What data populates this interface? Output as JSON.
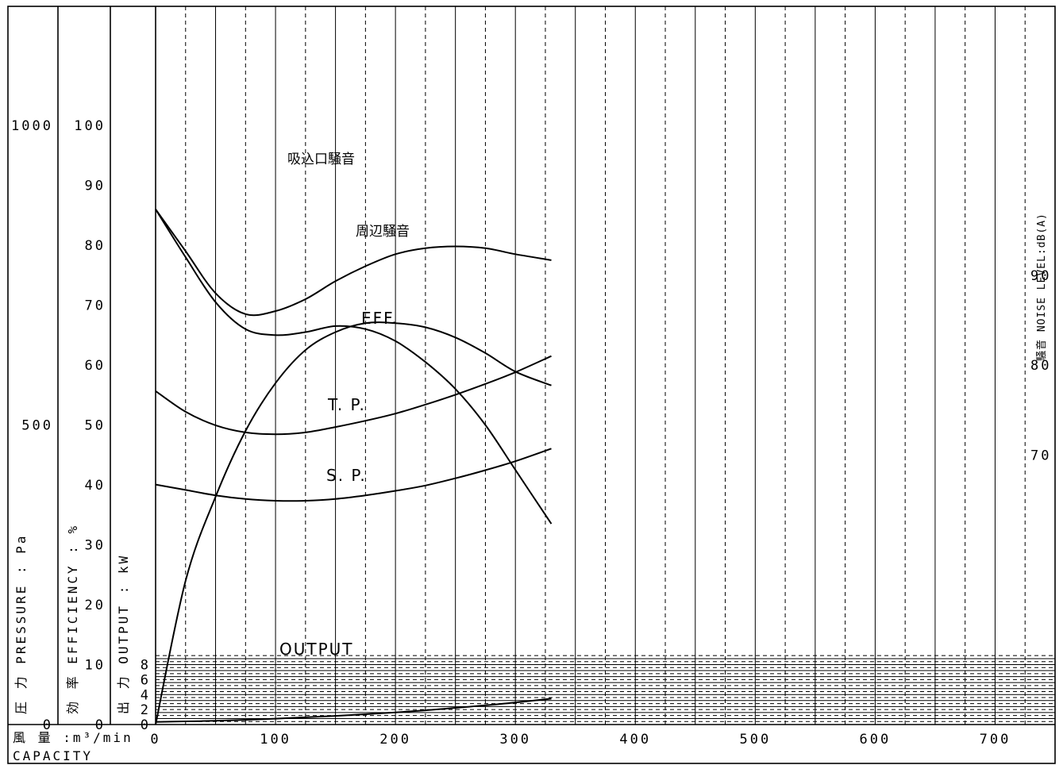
{
  "chart_data": {
    "type": "line",
    "x": {
      "label": "風 量 :m³/min",
      "label_en": "CAPACITY",
      "range": [
        0,
        750
      ],
      "ticks": [
        0,
        100,
        200,
        300,
        400,
        500,
        600,
        700
      ]
    },
    "axes": {
      "pressure": {
        "label": "圧 力 PRESSURE : Pa",
        "range": [
          0,
          1500
        ],
        "ticks": [
          0,
          500,
          1000
        ]
      },
      "efficiency": {
        "label": "効 率 EFFICIENCY : %",
        "range": [
          0,
          100
        ],
        "ticks": [
          0,
          10,
          20,
          30,
          40,
          50,
          60,
          70,
          80,
          90,
          100
        ]
      },
      "output": {
        "label": "出 力 OUTPUT : kW",
        "range": [
          0,
          8
        ],
        "ticks": [
          0,
          2,
          4,
          6,
          8
        ]
      },
      "noise": {
        "label": "騒音 NOISE LEVEL:dB(A)",
        "range": [
          40,
          90
        ],
        "ticks": [
          70,
          80,
          90
        ]
      }
    },
    "series": [
      {
        "name": "吸込口騒音",
        "axis": "noise",
        "x": [
          0,
          25,
          50,
          75,
          100,
          125,
          150,
          175,
          200,
          225,
          250,
          275,
          300,
          330
        ],
        "y": [
          77.1,
          74.8,
          73.3,
          72.5,
          72.3,
          72.5,
          73.1,
          73.8,
          74.6,
          75.6,
          76.7,
          77.9,
          79.2,
          81.0
        ]
      },
      {
        "name": "周辺騒音",
        "axis": "noise",
        "x": [
          0,
          25,
          50,
          75,
          100,
          125,
          150,
          175,
          200,
          225,
          250,
          275,
          300,
          330
        ],
        "y": [
          66.7,
          66.1,
          65.5,
          65.1,
          64.9,
          64.9,
          65.1,
          65.5,
          66.0,
          66.6,
          67.4,
          68.3,
          69.3,
          70.7
        ]
      },
      {
        "name": "EFF.",
        "axis": "efficiency",
        "x": [
          0,
          25,
          50,
          75,
          100,
          125,
          150,
          175,
          200,
          225,
          250,
          275,
          300,
          330
        ],
        "y": [
          0,
          24,
          38,
          49,
          57,
          62.5,
          65.5,
          67,
          67,
          66.3,
          64.6,
          62,
          58.9,
          56.6
        ]
      },
      {
        "name": "T. P.",
        "axis": "pressure",
        "x": [
          0,
          25,
          50,
          75,
          100,
          125,
          150,
          175,
          200,
          225,
          250,
          275,
          300,
          330
        ],
        "y": [
          860,
          790,
          720,
          685,
          690,
          710,
          740,
          765,
          785,
          795,
          798,
          795,
          785,
          775
        ]
      },
      {
        "name": "S. P.",
        "axis": "pressure",
        "x": [
          0,
          25,
          50,
          75,
          100,
          125,
          150,
          175,
          200,
          225,
          250,
          275,
          300,
          330
        ],
        "y": [
          860,
          780,
          705,
          660,
          650,
          655,
          665,
          660,
          640,
          605,
          560,
          500,
          425,
          335
        ]
      },
      {
        "name": "OUTPUT",
        "axis": "output",
        "x": [
          0,
          25,
          50,
          75,
          100,
          125,
          150,
          175,
          200,
          225,
          250,
          275,
          300,
          330
        ],
        "y": [
          0.35,
          0.42,
          0.5,
          0.62,
          0.78,
          0.96,
          1.16,
          1.38,
          1.62,
          1.9,
          2.22,
          2.56,
          2.95,
          3.45
        ]
      }
    ],
    "grid": true
  }
}
